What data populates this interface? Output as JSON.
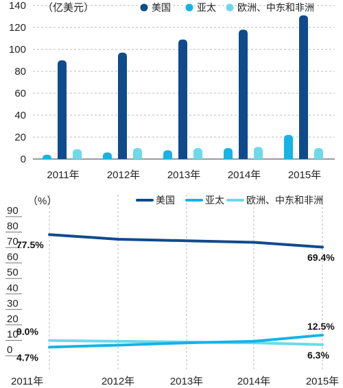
{
  "colors": {
    "usa": "#0f4b8c",
    "apac": "#14b4e6",
    "emea": "#6fd8ea",
    "grid": "#b8b8b8",
    "axis": "#333333"
  },
  "chart_data": [
    {
      "type": "bar",
      "unit_label": "（亿美元）",
      "categories": [
        "2011年",
        "2012年",
        "2013年",
        "2014年",
        "2015年"
      ],
      "series": [
        {
          "name": "美国",
          "color": "#0f4b8c",
          "values": [
            90,
            97,
            109,
            118,
            131
          ]
        },
        {
          "name": "亚太",
          "color": "#14b4e6",
          "values": [
            4,
            6,
            8,
            10,
            22
          ]
        },
        {
          "name": "欧洲、中东和非洲",
          "color": "#6fd8ea",
          "values": [
            9,
            10,
            10,
            11,
            10
          ]
        }
      ],
      "ylim": [
        0,
        140
      ],
      "yticks": [
        "0",
        "20",
        "40",
        "60",
        "80",
        "100",
        "120",
        "140"
      ],
      "grid": "horizontal dashed",
      "legend": "top-right"
    },
    {
      "type": "line",
      "unit_label": "（%）",
      "categories": [
        "2011年",
        "2012年",
        "2013年",
        "2014年",
        "2015年"
      ],
      "series": [
        {
          "name": "美国",
          "color": "#0f4b8c",
          "values": [
            77.5,
            74.5,
            73.5,
            72.5,
            69.4
          ]
        },
        {
          "name": "亚太",
          "color": "#14b4e6",
          "values": [
            4.7,
            6.0,
            7.5,
            8.5,
            12.5
          ]
        },
        {
          "name": "欧洲、中东和非洲",
          "color": "#6fd8ea",
          "values": [
            9.0,
            8.5,
            8.0,
            7.5,
            6.3
          ]
        }
      ],
      "data_labels": [
        {
          "series": 0,
          "index": 0,
          "text": "77.5%",
          "pos": "below"
        },
        {
          "series": 0,
          "index": 4,
          "text": "69.4%",
          "pos": "below"
        },
        {
          "series": 2,
          "index": 0,
          "text": "9.0%",
          "pos": "above"
        },
        {
          "series": 1,
          "index": 0,
          "text": "4.7%",
          "pos": "below"
        },
        {
          "series": 1,
          "index": 4,
          "text": "12.5%",
          "pos": "above"
        },
        {
          "series": 2,
          "index": 4,
          "text": "6.3%",
          "pos": "below"
        }
      ],
      "ylim": [
        0,
        90
      ],
      "yticks": [
        "0",
        "10",
        "20",
        "30",
        "40",
        "50",
        "60",
        "70",
        "80",
        "90"
      ],
      "grid": "vertical dashed",
      "legend": "top-right"
    }
  ]
}
